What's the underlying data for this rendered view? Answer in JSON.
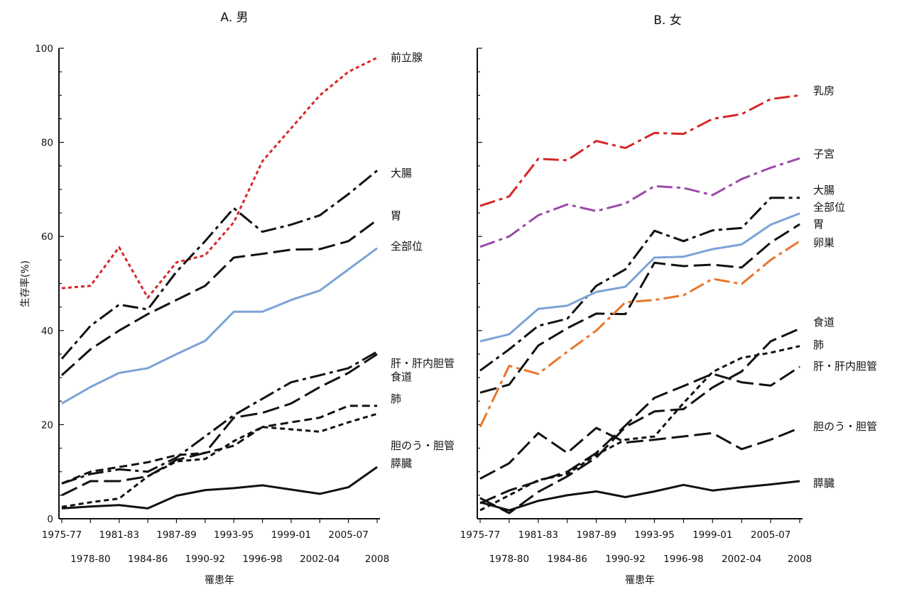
{
  "chart_data": [
    {
      "type": "line",
      "title": "A. 男",
      "ylabel": "生存率(%)",
      "xlabel": "罹患年",
      "ylim": [
        0,
        100
      ],
      "yticks": [
        0,
        20,
        40,
        60,
        80,
        100
      ],
      "categories": [
        "1975-77",
        "1978-80",
        "1981-83",
        "1984-86",
        "1987-89",
        "1990-92",
        "1993-95",
        "1996-98",
        "1999-01",
        "2002-04",
        "2005-07",
        "2008"
      ],
      "series": [
        {
          "name": "前立腺",
          "color": "#d62728",
          "dash": "dot",
          "values": [
            49,
            49.5,
            57.7,
            47,
            54.5,
            56,
            63,
            76,
            83,
            90,
            95,
            98
          ]
        },
        {
          "name": "大腸",
          "color": "#111111",
          "dash": "dashdot",
          "values": [
            34,
            41,
            45.5,
            44.5,
            52.5,
            59,
            66,
            61,
            62.5,
            64.5,
            69,
            74
          ]
        },
        {
          "name": "胃",
          "color": "#111111",
          "dash": "longdash",
          "values": [
            30.5,
            36,
            40,
            43.5,
            46.5,
            49.5,
            55.5,
            56.3,
            57.2,
            57.3,
            59,
            63.5
          ]
        },
        {
          "name": "全部位",
          "color": "#7ba3d6",
          "dash": "solid",
          "values": [
            24.5,
            28,
            31,
            32,
            35,
            37.8,
            44,
            44,
            46.5,
            48.5,
            53,
            57.5
          ]
        },
        {
          "name": "肝・肝内胆管",
          "color": "#111111",
          "dash": "dashdot",
          "values": [
            7.5,
            9.5,
            10.5,
            10,
            13,
            17.5,
            22,
            25.5,
            29,
            30.5,
            32,
            35.5
          ]
        },
        {
          "name": "食道",
          "color": "#111111",
          "dash": "longdash",
          "values": [
            5,
            8,
            8,
            9,
            12.5,
            14,
            21.5,
            22.5,
            24.5,
            28,
            31,
            35
          ]
        },
        {
          "name": "肺",
          "color": "#111111",
          "dash": "dash",
          "values": [
            7.5,
            10,
            11,
            12,
            13.5,
            14,
            15.5,
            19.5,
            20.5,
            21.5,
            24,
            24
          ]
        },
        {
          "name": "胆のう・胆管",
          "color": "#111111",
          "dash": "shortdash",
          "values": [
            2.5,
            3.5,
            4.3,
            9,
            12.2,
            12.7,
            16.5,
            19.5,
            19,
            18.5,
            20.5,
            22.3
          ]
        },
        {
          "name": "膵臓",
          "color": "#111111",
          "dash": "solid",
          "values": [
            2.2,
            2.6,
            2.9,
            2.2,
            4.9,
            6.1,
            6.5,
            7.1,
            6.2,
            5.3,
            6.7,
            11
          ]
        }
      ]
    },
    {
      "type": "line",
      "title": "B. 女",
      "ylabel": "",
      "xlabel": "罹患年",
      "ylim": [
        0,
        100
      ],
      "categories": [
        "1975-77",
        "1978-80",
        "1981-83",
        "1984-86",
        "1987-89",
        "1990-92",
        "1993-95",
        "1996-98",
        "1999-01",
        "2002-04",
        "2005-07",
        "2008"
      ],
      "series": [
        {
          "name": "乳房",
          "color": "#d62728",
          "dash": "dashdot",
          "values": [
            66.5,
            68.5,
            76.5,
            76.2,
            80.3,
            78.8,
            82,
            81.8,
            85,
            86,
            89.2,
            90
          ]
        },
        {
          "name": "子宮",
          "color": "#9b4aa8",
          "dash": "dashdot",
          "values": [
            57.8,
            60,
            64.5,
            66.8,
            65.4,
            67,
            70.7,
            70.3,
            68.8,
            72.2,
            74.6,
            76.6
          ]
        },
        {
          "name": "大腸",
          "color": "#111111",
          "dash": "dashdot",
          "values": [
            31.5,
            36,
            41,
            42.5,
            49.5,
            53,
            61.2,
            59,
            61.3,
            61.8,
            68.2,
            68.2
          ]
        },
        {
          "name": "全部位",
          "color": "#7ba3d6",
          "dash": "solid",
          "values": [
            37.7,
            39.2,
            44.6,
            45.3,
            48.2,
            49.3,
            55.5,
            55.7,
            57.3,
            58.3,
            62.5,
            64.9
          ]
        },
        {
          "name": "胃",
          "color": "#111111",
          "dash": "longdash",
          "values": [
            26.8,
            28.5,
            36.8,
            40.5,
            43.6,
            43.5,
            54.4,
            53.7,
            54,
            53.4,
            58.7,
            62.6
          ]
        },
        {
          "name": "卵巣",
          "color": "#e8762c",
          "dash": "dashdot",
          "values": [
            19.5,
            32.5,
            30.8,
            35.5,
            40,
            46,
            46.5,
            47.5,
            51,
            49.9,
            55,
            59
          ]
        },
        {
          "name": "食道",
          "color": "#111111",
          "dash": "longdash",
          "values": [
            4.4,
            1.2,
            5.7,
            9,
            13,
            19.5,
            22.8,
            23.3,
            27.9,
            31.3,
            37.7,
            40.4
          ]
        },
        {
          "name": "肺",
          "color": "#111111",
          "dash": "shortdash",
          "values": [
            1.8,
            5,
            8.2,
            9.5,
            13.6,
            16.8,
            17.5,
            24.6,
            31.2,
            34.2,
            35.3,
            36.7
          ]
        },
        {
          "name": "肝・肝内胆管",
          "color": "#111111",
          "dash": "longdash",
          "values": [
            3.3,
            6,
            8,
            10,
            14,
            19.8,
            25.7,
            28.2,
            30.8,
            29,
            28.3,
            32.3
          ]
        },
        {
          "name": "胆のう・胆管",
          "color": "#111111",
          "dash": "longdash",
          "values": [
            8.5,
            11.8,
            18.2,
            14,
            19.3,
            16.2,
            16.8,
            17.5,
            18.2,
            14.8,
            16.8,
            19.3
          ]
        },
        {
          "name": "膵臓",
          "color": "#111111",
          "dash": "solid",
          "values": [
            3.5,
            1.8,
            3.8,
            5,
            5.8,
            4.6,
            5.8,
            7.2,
            6,
            6.7,
            7.3,
            8
          ]
        }
      ]
    }
  ]
}
